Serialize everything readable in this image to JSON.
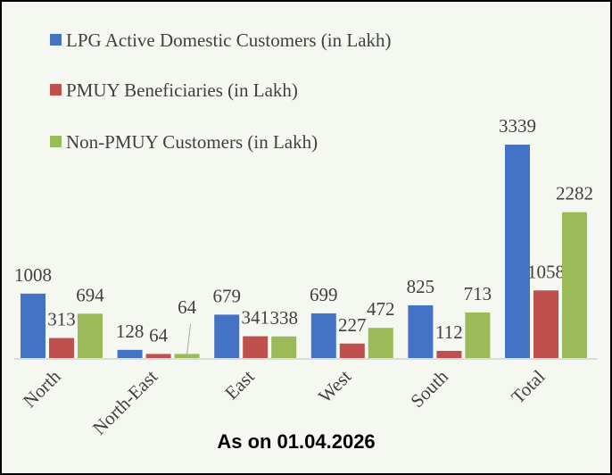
{
  "chart_data": {
    "type": "bar",
    "categories": [
      "North",
      "North-East",
      "East",
      "West",
      "South",
      "Total"
    ],
    "series": [
      {
        "name": "LPG Active Domestic Customers (in Lakh)",
        "color": "#4472c4",
        "values": [
          1008,
          128,
          679,
          699,
          825,
          3339
        ]
      },
      {
        "name": "PMUY Beneficiaries (in Lakh)",
        "color": "#c0504d",
        "values": [
          313,
          64,
          341,
          227,
          112,
          1058
        ]
      },
      {
        "name": "Non-PMUY Customers (in Lakh)",
        "color": "#9bbb59",
        "values": [
          694,
          64,
          338,
          472,
          713,
          2282
        ]
      }
    ],
    "annotation": "As on 01.04.2026"
  }
}
